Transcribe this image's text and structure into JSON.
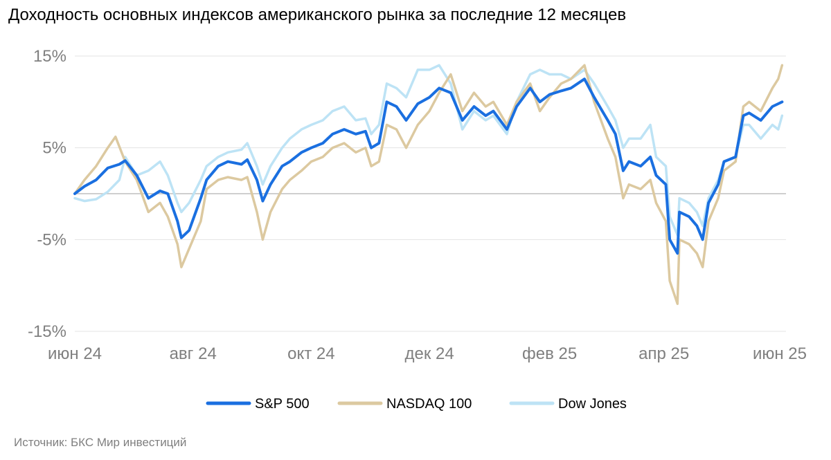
{
  "title": "Доходность основных индексов американского рынка за последние 12 месяцев",
  "source": "Источник: БКС Мир инвестиций",
  "colors": {
    "sp500": "#1a6fe0",
    "nasdaq": "#dcc9a0",
    "dow": "#bde3f5",
    "grid": "#e3e3e3",
    "zero": "#bfbfbf",
    "tick": "#7f7f7f"
  },
  "chart_data": {
    "type": "line",
    "title": "Доходность основных индексов американского рынка за последние 12 месяцев",
    "xlabel": "",
    "ylabel": "",
    "ylim": [
      -15,
      15
    ],
    "yticks": [
      15,
      5,
      -5,
      -15
    ],
    "ytick_labels": [
      "15%",
      "5%",
      "-5%",
      "-15%"
    ],
    "xlim": [
      "2024-06-01",
      "2025-06-03"
    ],
    "xticks": [
      "2024-06-01",
      "2024-08-01",
      "2024-10-01",
      "2024-12-01",
      "2025-02-01",
      "2025-04-01",
      "2025-06-01"
    ],
    "xtick_labels": [
      "июн 24",
      "авг 24",
      "окт 24",
      "дек 24",
      "фев 25",
      "апр 25",
      "июн 25"
    ],
    "grid": true,
    "legend_position": "bottom-center",
    "series": [
      {
        "name": "S&P 500",
        "color": "#1a6fe0",
        "points": [
          [
            "2024-06-01",
            0.0
          ],
          [
            "2024-06-06",
            0.8
          ],
          [
            "2024-06-12",
            1.5
          ],
          [
            "2024-06-18",
            2.8
          ],
          [
            "2024-06-24",
            3.2
          ],
          [
            "2024-06-27",
            3.6
          ],
          [
            "2024-07-03",
            2.0
          ],
          [
            "2024-07-09",
            -0.5
          ],
          [
            "2024-07-15",
            0.3
          ],
          [
            "2024-07-19",
            0.0
          ],
          [
            "2024-07-24",
            -3.0
          ],
          [
            "2024-07-26",
            -4.8
          ],
          [
            "2024-07-30",
            -4.0
          ],
          [
            "2024-08-05",
            -0.5
          ],
          [
            "2024-08-08",
            1.5
          ],
          [
            "2024-08-14",
            3.0
          ],
          [
            "2024-08-19",
            3.5
          ],
          [
            "2024-08-26",
            3.2
          ],
          [
            "2024-08-29",
            3.7
          ],
          [
            "2024-09-03",
            1.5
          ],
          [
            "2024-09-06",
            -0.8
          ],
          [
            "2024-09-10",
            1.0
          ],
          [
            "2024-09-16",
            3.0
          ],
          [
            "2024-09-20",
            3.5
          ],
          [
            "2024-09-26",
            4.5
          ],
          [
            "2024-10-01",
            5.0
          ],
          [
            "2024-10-07",
            5.5
          ],
          [
            "2024-10-12",
            6.5
          ],
          [
            "2024-10-18",
            7.0
          ],
          [
            "2024-10-24",
            6.5
          ],
          [
            "2024-10-29",
            6.8
          ],
          [
            "2024-11-01",
            5.0
          ],
          [
            "2024-11-05",
            5.5
          ],
          [
            "2024-11-09",
            10.0
          ],
          [
            "2024-11-14",
            9.5
          ],
          [
            "2024-11-19",
            8.0
          ],
          [
            "2024-11-25",
            9.8
          ],
          [
            "2024-12-01",
            10.5
          ],
          [
            "2024-12-06",
            11.5
          ],
          [
            "2024-12-12",
            11.0
          ],
          [
            "2024-12-18",
            8.0
          ],
          [
            "2024-12-24",
            9.5
          ],
          [
            "2024-12-30",
            8.5
          ],
          [
            "2025-01-03",
            9.0
          ],
          [
            "2025-01-10",
            7.0
          ],
          [
            "2025-01-15",
            9.5
          ],
          [
            "2025-01-22",
            11.5
          ],
          [
            "2025-01-27",
            10.0
          ],
          [
            "2025-02-01",
            10.8
          ],
          [
            "2025-02-07",
            11.2
          ],
          [
            "2025-02-12",
            11.5
          ],
          [
            "2025-02-19",
            12.5
          ],
          [
            "2025-02-24",
            10.5
          ],
          [
            "2025-03-03",
            8.0
          ],
          [
            "2025-03-07",
            6.5
          ],
          [
            "2025-03-11",
            2.5
          ],
          [
            "2025-03-14",
            3.5
          ],
          [
            "2025-03-20",
            3.0
          ],
          [
            "2025-03-25",
            4.0
          ],
          [
            "2025-03-28",
            2.0
          ],
          [
            "2025-04-02",
            1.0
          ],
          [
            "2025-04-04",
            -5.0
          ],
          [
            "2025-04-08",
            -6.5
          ],
          [
            "2025-04-09",
            -2.0
          ],
          [
            "2025-04-14",
            -2.5
          ],
          [
            "2025-04-18",
            -3.5
          ],
          [
            "2025-04-21",
            -5.0
          ],
          [
            "2025-04-24",
            -1.0
          ],
          [
            "2025-04-29",
            1.0
          ],
          [
            "2025-05-02",
            3.5
          ],
          [
            "2025-05-08",
            4.0
          ],
          [
            "2025-05-12",
            8.5
          ],
          [
            "2025-05-15",
            8.8
          ],
          [
            "2025-05-21",
            8.0
          ],
          [
            "2025-05-27",
            9.5
          ],
          [
            "2025-05-30",
            9.8
          ],
          [
            "2025-06-01",
            10.0
          ]
        ]
      },
      {
        "name": "NASDAQ 100",
        "color": "#dcc9a0",
        "points": [
          [
            "2024-06-01",
            0.0
          ],
          [
            "2024-06-06",
            1.5
          ],
          [
            "2024-06-12",
            3.0
          ],
          [
            "2024-06-18",
            5.0
          ],
          [
            "2024-06-22",
            6.2
          ],
          [
            "2024-06-27",
            3.5
          ],
          [
            "2024-07-03",
            1.5
          ],
          [
            "2024-07-09",
            -2.0
          ],
          [
            "2024-07-15",
            -1.0
          ],
          [
            "2024-07-19",
            -2.5
          ],
          [
            "2024-07-24",
            -5.5
          ],
          [
            "2024-07-26",
            -8.0
          ],
          [
            "2024-07-30",
            -6.0
          ],
          [
            "2024-08-05",
            -3.0
          ],
          [
            "2024-08-08",
            0.5
          ],
          [
            "2024-08-14",
            1.5
          ],
          [
            "2024-08-19",
            1.8
          ],
          [
            "2024-08-26",
            1.5
          ],
          [
            "2024-08-29",
            1.8
          ],
          [
            "2024-09-03",
            -2.0
          ],
          [
            "2024-09-06",
            -5.0
          ],
          [
            "2024-09-10",
            -2.0
          ],
          [
            "2024-09-16",
            0.5
          ],
          [
            "2024-09-20",
            1.5
          ],
          [
            "2024-09-26",
            2.5
          ],
          [
            "2024-10-01",
            3.5
          ],
          [
            "2024-10-07",
            4.0
          ],
          [
            "2024-10-12",
            5.0
          ],
          [
            "2024-10-18",
            5.5
          ],
          [
            "2024-10-24",
            4.5
          ],
          [
            "2024-10-29",
            5.0
          ],
          [
            "2024-11-01",
            3.0
          ],
          [
            "2024-11-05",
            3.5
          ],
          [
            "2024-11-09",
            7.5
          ],
          [
            "2024-11-14",
            7.0
          ],
          [
            "2024-11-19",
            5.0
          ],
          [
            "2024-11-25",
            7.5
          ],
          [
            "2024-12-01",
            9.0
          ],
          [
            "2024-12-06",
            11.0
          ],
          [
            "2024-12-12",
            13.0
          ],
          [
            "2024-12-18",
            9.0
          ],
          [
            "2024-12-24",
            11.0
          ],
          [
            "2024-12-30",
            9.5
          ],
          [
            "2025-01-03",
            10.0
          ],
          [
            "2025-01-10",
            7.5
          ],
          [
            "2025-01-15",
            10.0
          ],
          [
            "2025-01-22",
            12.0
          ],
          [
            "2025-01-27",
            9.0
          ],
          [
            "2025-02-01",
            10.5
          ],
          [
            "2025-02-07",
            12.0
          ],
          [
            "2025-02-12",
            12.5
          ],
          [
            "2025-02-19",
            14.0
          ],
          [
            "2025-02-24",
            10.0
          ],
          [
            "2025-03-03",
            6.0
          ],
          [
            "2025-03-07",
            4.0
          ],
          [
            "2025-03-11",
            -0.5
          ],
          [
            "2025-03-14",
            1.0
          ],
          [
            "2025-03-20",
            0.5
          ],
          [
            "2025-03-25",
            1.5
          ],
          [
            "2025-03-28",
            -1.0
          ],
          [
            "2025-04-02",
            -3.0
          ],
          [
            "2025-04-04",
            -9.5
          ],
          [
            "2025-04-08",
            -12.0
          ],
          [
            "2025-04-09",
            -5.0
          ],
          [
            "2025-04-14",
            -5.5
          ],
          [
            "2025-04-18",
            -6.5
          ],
          [
            "2025-04-21",
            -8.0
          ],
          [
            "2025-04-24",
            -3.0
          ],
          [
            "2025-04-29",
            -0.5
          ],
          [
            "2025-05-02",
            2.5
          ],
          [
            "2025-05-08",
            3.5
          ],
          [
            "2025-05-12",
            9.5
          ],
          [
            "2025-05-15",
            10.0
          ],
          [
            "2025-05-21",
            9.0
          ],
          [
            "2025-05-27",
            11.5
          ],
          [
            "2025-05-30",
            12.5
          ],
          [
            "2025-06-01",
            14.0
          ]
        ]
      },
      {
        "name": "Dow Jones",
        "color": "#bde3f5",
        "points": [
          [
            "2024-06-01",
            -0.5
          ],
          [
            "2024-06-06",
            -0.8
          ],
          [
            "2024-06-12",
            -0.6
          ],
          [
            "2024-06-18",
            0.2
          ],
          [
            "2024-06-24",
            1.5
          ],
          [
            "2024-06-27",
            4.0
          ],
          [
            "2024-07-03",
            2.0
          ],
          [
            "2024-07-09",
            2.5
          ],
          [
            "2024-07-15",
            3.5
          ],
          [
            "2024-07-19",
            2.0
          ],
          [
            "2024-07-24",
            -1.0
          ],
          [
            "2024-07-26",
            -2.0
          ],
          [
            "2024-07-30",
            -1.0
          ],
          [
            "2024-08-05",
            1.5
          ],
          [
            "2024-08-08",
            3.0
          ],
          [
            "2024-08-14",
            4.0
          ],
          [
            "2024-08-19",
            4.5
          ],
          [
            "2024-08-26",
            4.8
          ],
          [
            "2024-08-29",
            5.5
          ],
          [
            "2024-09-03",
            3.0
          ],
          [
            "2024-09-06",
            1.0
          ],
          [
            "2024-09-10",
            3.0
          ],
          [
            "2024-09-16",
            5.0
          ],
          [
            "2024-09-20",
            6.0
          ],
          [
            "2024-09-26",
            7.0
          ],
          [
            "2024-10-01",
            7.5
          ],
          [
            "2024-10-07",
            8.0
          ],
          [
            "2024-10-12",
            9.0
          ],
          [
            "2024-10-18",
            9.5
          ],
          [
            "2024-10-24",
            8.0
          ],
          [
            "2024-10-29",
            8.2
          ],
          [
            "2024-11-01",
            6.5
          ],
          [
            "2024-11-05",
            7.5
          ],
          [
            "2024-11-09",
            12.0
          ],
          [
            "2024-11-14",
            11.5
          ],
          [
            "2024-11-19",
            10.5
          ],
          [
            "2024-11-25",
            13.5
          ],
          [
            "2024-12-01",
            13.5
          ],
          [
            "2024-12-06",
            14.0
          ],
          [
            "2024-12-12",
            12.0
          ],
          [
            "2024-12-18",
            7.0
          ],
          [
            "2024-12-24",
            9.0
          ],
          [
            "2024-12-30",
            8.0
          ],
          [
            "2025-01-03",
            8.5
          ],
          [
            "2025-01-10",
            6.5
          ],
          [
            "2025-01-15",
            10.0
          ],
          [
            "2025-01-22",
            13.0
          ],
          [
            "2025-01-27",
            13.5
          ],
          [
            "2025-02-01",
            13.0
          ],
          [
            "2025-02-07",
            13.0
          ],
          [
            "2025-02-12",
            12.5
          ],
          [
            "2025-02-19",
            13.5
          ],
          [
            "2025-02-24",
            12.0
          ],
          [
            "2025-03-03",
            9.5
          ],
          [
            "2025-03-07",
            8.0
          ],
          [
            "2025-03-11",
            5.0
          ],
          [
            "2025-03-14",
            6.0
          ],
          [
            "2025-03-20",
            6.0
          ],
          [
            "2025-03-25",
            7.5
          ],
          [
            "2025-03-28",
            4.0
          ],
          [
            "2025-04-02",
            3.0
          ],
          [
            "2025-04-04",
            -2.5
          ],
          [
            "2025-04-08",
            -4.5
          ],
          [
            "2025-04-09",
            -0.5
          ],
          [
            "2025-04-14",
            -1.0
          ],
          [
            "2025-04-18",
            -2.0
          ],
          [
            "2025-04-21",
            -3.5
          ],
          [
            "2025-04-24",
            -0.5
          ],
          [
            "2025-04-29",
            1.5
          ],
          [
            "2025-05-02",
            3.5
          ],
          [
            "2025-05-08",
            4.0
          ],
          [
            "2025-05-12",
            7.5
          ],
          [
            "2025-05-15",
            7.5
          ],
          [
            "2025-05-21",
            6.0
          ],
          [
            "2025-05-27",
            7.5
          ],
          [
            "2025-05-30",
            7.0
          ],
          [
            "2025-06-01",
            8.5
          ]
        ]
      }
    ]
  }
}
